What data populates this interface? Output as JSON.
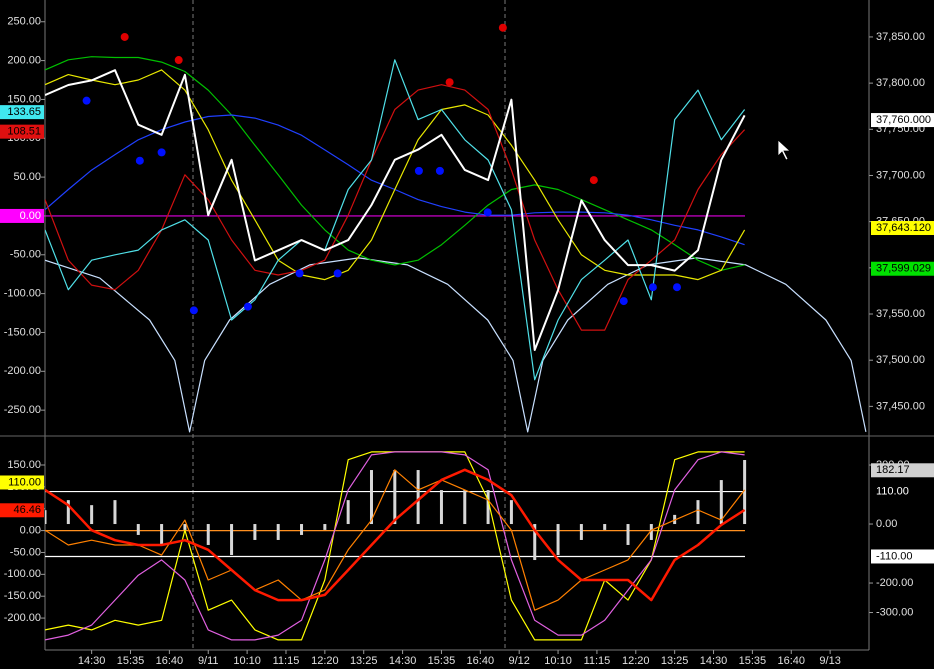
{
  "chart_data": [
    {
      "type": "line",
      "xlim": [
        -1.2,
        20
      ],
      "ylim": [
        -282,
        278
      ],
      "y2lim": [
        37419,
        37890
      ],
      "yticks": [
        {
          "value": 250,
          "label": "250.00"
        },
        {
          "value": 200,
          "label": "200.00"
        },
        {
          "value": 150,
          "label": "150.00"
        },
        {
          "value": 100,
          "label": "100.00"
        },
        {
          "value": 50,
          "label": "50.00"
        },
        {
          "value": 0,
          "label": "0.00"
        },
        {
          "value": -50,
          "label": "-50.00"
        },
        {
          "value": -100,
          "label": "-100.00"
        },
        {
          "value": -150,
          "label": "-150.00"
        },
        {
          "value": -200,
          "label": "-200.00"
        },
        {
          "value": -250,
          "label": "-250.00"
        }
      ],
      "y2ticks": [
        {
          "value": 37850,
          "label": "37,850.00"
        },
        {
          "value": 37800,
          "label": "37,800.00"
        },
        {
          "value": 37750,
          "label": "37,750.00"
        },
        {
          "value": 37700,
          "label": "37,700.00"
        },
        {
          "value": 37650,
          "label": "37,650.00"
        },
        {
          "value": 37600,
          "label": "37,600.00"
        },
        {
          "value": 37550,
          "label": "37,550.00"
        },
        {
          "value": 37500,
          "label": "37,500.00"
        },
        {
          "value": 37450,
          "label": "37,450.00"
        }
      ],
      "x": [
        -1.2,
        -0.6,
        0,
        0.6,
        1.2,
        1.8,
        2.4,
        3,
        3.6,
        4.2,
        4.8,
        5.4,
        6,
        6.6,
        7.2,
        7.8,
        8.4,
        9,
        9.6,
        10.2,
        10.8,
        11.4,
        12,
        12.6,
        13.2,
        13.8,
        14.4,
        15,
        15.6,
        16.2,
        16.8
      ],
      "levels": [
        {
          "value": 0,
          "axis": "y",
          "color": "#e000e0"
        }
      ],
      "series": [
        {
          "color": "#c8e0ff",
          "axis": "y",
          "x": [
            -1.2,
            0.21,
            1.49,
            2.14,
            2.52,
            2.91,
            3.55,
            4.58,
            5.61,
            6.87,
            8.13,
            9.16,
            10.19,
            10.84,
            11.22,
            11.61,
            12.25,
            13.28,
            14.31,
            15.57,
            16.83,
            17.86,
            18.89,
            19.54,
            19.92
          ],
          "values": [
            -57,
            -80,
            -134,
            -186,
            -278,
            -186,
            -134,
            -88,
            -63,
            -54,
            -63,
            -88,
            -134,
            -186,
            -278,
            -186,
            -134,
            -88,
            -63,
            -54,
            -63,
            -88,
            -134,
            -186,
            -278
          ]
        },
        {
          "color": "#00c000",
          "axis": "y",
          "values": [
            188,
            201,
            205,
            204,
            204,
            198,
            186,
            162,
            130,
            91,
            53,
            14,
            -18,
            -44,
            -57,
            -63,
            -57,
            -37,
            -12,
            14,
            34,
            40,
            34,
            21,
            8,
            -5,
            -18,
            -37,
            -57,
            -70,
            -63
          ]
        },
        {
          "color": "#2040ff",
          "axis": "y",
          "values": [
            8,
            34,
            59,
            79,
            98,
            111,
            121,
            128,
            130,
            126,
            117,
            104,
            85,
            66,
            46,
            34,
            21,
            12,
            5,
            1,
            1,
            4,
            5,
            5,
            4,
            1,
            -5,
            -12,
            -18,
            -27,
            -37
          ]
        },
        {
          "color": "#e8e800",
          "axis": "y",
          "values": [
            169,
            182,
            175,
            169,
            175,
            188,
            162,
            111,
            46,
            -5,
            -57,
            -76,
            -82,
            -70,
            -31,
            34,
            98,
            137,
            143,
            130,
            91,
            46,
            -5,
            -50,
            -70,
            -76,
            -76,
            -76,
            -82,
            -70,
            -18
          ]
        },
        {
          "color": "#d01010",
          "axis": "y",
          "values": [
            21,
            -57,
            -89,
            -95,
            -70,
            -18,
            53,
            21,
            -31,
            -70,
            -76,
            -70,
            -57,
            1,
            72,
            137,
            162,
            169,
            162,
            137,
            59,
            -31,
            -95,
            -147,
            -147,
            -82,
            -57,
            -31,
            34,
            79,
            111
          ]
        },
        {
          "color": "#50e0e8",
          "axis": "y",
          "values": [
            -18,
            -95,
            -57,
            -50,
            -44,
            -18,
            -5,
            -31,
            -134,
            -108,
            -57,
            -31,
            -44,
            34,
            72,
            201,
            124,
            137,
            98,
            72,
            8,
            -211,
            -134,
            -82,
            -57,
            -31,
            -108,
            124,
            162,
            98,
            137
          ]
        },
        {
          "color": "#ffffff",
          "axis": "y2",
          "values": [
            37787,
            37798,
            37803,
            37814,
            37755,
            37744,
            37809,
            37657,
            37717,
            37608,
            37619,
            37630,
            37619,
            37630,
            37668,
            37717,
            37728,
            37744,
            37706,
            37695,
            37782,
            37511,
            37576,
            37673,
            37630,
            37603,
            37603,
            37597,
            37619,
            37717,
            37765
          ]
        }
      ],
      "markers": [
        {
          "color": "#e00000",
          "axis": "y2",
          "x": [
            0.85,
            2.24,
            9.21,
            10.58,
            12.92
          ],
          "values": [
            37850,
            37825,
            37801,
            37860,
            37695
          ]
        },
        {
          "color": "#0010ff",
          "axis": "y2",
          "x": [
            -0.13,
            1.24,
            1.8,
            2.63,
            4.02,
            5.35,
            6.33,
            8.42,
            8.96,
            10.19,
            13.69,
            14.44,
            15.06
          ],
          "values": [
            37781,
            37716,
            37725,
            37554,
            37558,
            37594,
            37594,
            37705,
            37705,
            37660,
            37564,
            37579,
            37579
          ]
        }
      ],
      "tags": [
        {
          "value": 133.65,
          "label": "133.65",
          "axis": "y",
          "color": "#40e8f0",
          "text_color": "#000000"
        },
        {
          "value": 108.51,
          "label": "108.51",
          "axis": "y",
          "color": "#e01010",
          "text_color": "#000000"
        },
        {
          "value": 0,
          "label": "0.00",
          "axis": "y",
          "color": "#ff00ff",
          "text_color": "#ffffff"
        },
        {
          "value": 37760,
          "label": "37,760.000",
          "axis": "y2",
          "color": "#ffffff",
          "text_color": "#000000"
        },
        {
          "value": 37643.12,
          "label": "37,643.120",
          "axis": "y2",
          "color": "#ffff00",
          "text_color": "#000000"
        },
        {
          "value": 37599.029,
          "label": "37,599.029",
          "axis": "y2",
          "color": "#00e000",
          "text_color": "#000000"
        }
      ]
    },
    {
      "type": "line",
      "xlim": [
        -1.2,
        20
      ],
      "ylim": [
        -273,
        214
      ],
      "y2lim": [
        -427,
        295
      ],
      "xticks": [
        {
          "value": 0,
          "label": "14:30"
        },
        {
          "value": 1,
          "label": "15:35"
        },
        {
          "value": 2,
          "label": "16:40"
        },
        {
          "value": 3,
          "label": "9/11"
        },
        {
          "value": 4,
          "label": "10:10"
        },
        {
          "value": 5,
          "label": "11:15"
        },
        {
          "value": 6,
          "label": "12:20"
        },
        {
          "value": 7,
          "label": "13:25"
        },
        {
          "value": 8,
          "label": "14:30"
        },
        {
          "value": 9,
          "label": "15:35"
        },
        {
          "value": 10,
          "label": "16:40"
        },
        {
          "value": 11,
          "label": "9/12"
        },
        {
          "value": 12,
          "label": "10:10"
        },
        {
          "value": 13,
          "label": "11:15"
        },
        {
          "value": 14,
          "label": "12:20"
        },
        {
          "value": 15,
          "label": "13:25"
        },
        {
          "value": 16,
          "label": "14:30"
        },
        {
          "value": 17,
          "label": "15:35"
        },
        {
          "value": 18,
          "label": "16:40"
        },
        {
          "value": 19,
          "label": "9/13"
        }
      ],
      "yticks": [
        {
          "value": 150,
          "label": "150.00"
        },
        {
          "value": 100,
          "label": "100.00"
        },
        {
          "value": 50,
          "label": "50.00"
        },
        {
          "value": 0,
          "label": "0.00"
        },
        {
          "value": -50,
          "label": "-50.00"
        },
        {
          "value": -100,
          "label": "-100.00"
        },
        {
          "value": -150,
          "label": "-150.00"
        },
        {
          "value": -200,
          "label": "-200.00"
        }
      ],
      "y2ticks": [
        {
          "value": 200,
          "label": "200.00"
        },
        {
          "value": 0,
          "label": "0.00"
        },
        {
          "value": -200,
          "label": "-200.00"
        },
        {
          "value": -300,
          "label": "-300.00"
        }
      ],
      "x": [
        -1.2,
        -0.6,
        0,
        0.6,
        1.2,
        1.8,
        2.4,
        3,
        3.6,
        4.2,
        4.8,
        5.4,
        6,
        6.6,
        7.2,
        7.8,
        8.4,
        9,
        9.6,
        10.2,
        10.8,
        11.4,
        12,
        12.6,
        13.2,
        13.8,
        14.4,
        15,
        15.6,
        16.2,
        16.8
      ],
      "levels": [
        {
          "value": 110,
          "axis": "y2",
          "color": "#ffffff"
        },
        {
          "value": -110,
          "axis": "y2",
          "color": "#ffffff"
        },
        {
          "value": 0,
          "axis": "y",
          "color": "#ff9020"
        }
      ],
      "series": [
        {
          "color": "#d8d8d8",
          "axis": "y2",
          "style": "bar",
          "values": [
            47,
            81,
            64,
            81,
            -37,
            -71,
            -20,
            -71,
            -105,
            -54,
            -54,
            -37,
            -20,
            81,
            183,
            183,
            183,
            115,
            115,
            115,
            81,
            -122,
            -105,
            -54,
            -20,
            -71,
            -54,
            31,
            81,
            149,
            217
          ]
        },
        {
          "color": "#ffff00",
          "axis": "y",
          "values": [
            -227,
            -216,
            -227,
            -205,
            -216,
            -205,
            1,
            -182,
            -159,
            -227,
            -250,
            -250,
            -113,
            162,
            180,
            180,
            180,
            180,
            180,
            70,
            -159,
            -250,
            -250,
            -250,
            -113,
            -159,
            -67,
            162,
            180,
            180,
            180
          ]
        },
        {
          "color": "#e060e0",
          "axis": "y",
          "values": [
            -250,
            -239,
            -216,
            -159,
            -102,
            -67,
            -113,
            -227,
            -250,
            -250,
            -239,
            -205,
            -67,
            93,
            173,
            180,
            180,
            180,
            173,
            139,
            -67,
            -205,
            -239,
            -239,
            -205,
            -136,
            -67,
            93,
            162,
            180,
            173
          ]
        },
        {
          "color": "#ff8000",
          "axis": "y",
          "values": [
            1,
            -33,
            -22,
            -33,
            -33,
            -56,
            24,
            -113,
            -90,
            -136,
            -113,
            -159,
            -136,
            -44,
            24,
            139,
            93,
            116,
            93,
            70,
            1,
            -182,
            -159,
            -113,
            -90,
            -67,
            1,
            24,
            47,
            24,
            93
          ]
        },
        {
          "color": "#ff1a00",
          "axis": "y",
          "values": [
            93,
            58,
            1,
            -22,
            -33,
            -33,
            -22,
            -44,
            -90,
            -136,
            -159,
            -159,
            -147,
            -90,
            -33,
            24,
            70,
            116,
            139,
            116,
            81,
            1,
            -67,
            -113,
            -113,
            -113,
            -159,
            -67,
            -33,
            13,
            47
          ]
        }
      ],
      "tags": [
        {
          "value": 110,
          "label": "110.00",
          "axis": "y",
          "color": "#ffff00",
          "text_color": "#000000"
        },
        {
          "value": 46.46,
          "label": "46.46",
          "axis": "y",
          "color": "#ff1a00",
          "text_color": "#000000"
        },
        {
          "value": 182.17,
          "label": "182.17",
          "axis": "y2",
          "color": "#d0d0d0",
          "text_color": "#000000"
        },
        {
          "value": 110,
          "label": "110.00",
          "axis": "y2",
          "color": "#000000",
          "text_color": "#ffffff"
        },
        {
          "value": -110,
          "label": "-110.00",
          "axis": "y2",
          "color": "#ffffff",
          "text_color": "#000000"
        }
      ]
    }
  ]
}
